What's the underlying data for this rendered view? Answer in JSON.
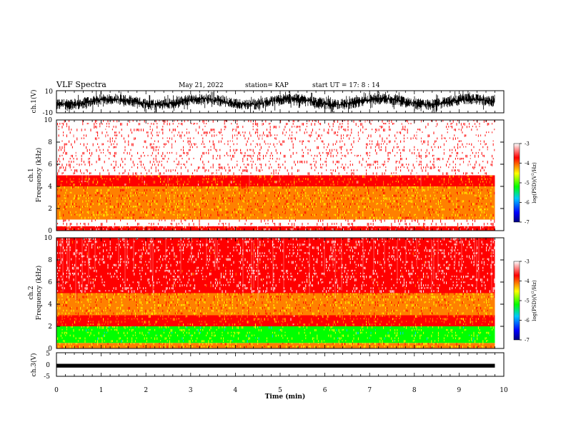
{
  "header": {
    "title": "VLF Spectra",
    "date": "May 21, 2022",
    "station": "station= KAP",
    "start_ut": "start  UT  =    17: 8   : 14"
  },
  "colors": {
    "spectrogram_scale": [
      "#000080",
      "#0000ff",
      "#00c8ff",
      "#00ff00",
      "#ffff00",
      "#ff8000",
      "#ff0000",
      "#ffffff"
    ],
    "trace": "#000000"
  },
  "chart_data": [
    {
      "type": "line",
      "name": "ch1-waveform",
      "ylabel": "ch.1(V)",
      "ylim": [
        -10,
        10
      ],
      "y_ticks": [
        "10",
        "-10"
      ],
      "xlim": [
        0,
        10
      ],
      "description_level": "dense noise trace spanning roughly -10 to 10 V until about 9.8 min"
    },
    {
      "type": "heatmap",
      "name": "ch1-spectrogram",
      "ylabel": "ch.1\nFrequency (kHz)",
      "xlim": [
        0,
        10
      ],
      "ylim": [
        0,
        10
      ],
      "y_ticks": [
        "0",
        "2",
        "4",
        "6",
        "8",
        "10"
      ],
      "data_end_min": 9.8,
      "colorbar": {
        "label": "log(PSD)(V²/Hz)",
        "range": [
          -7,
          -3
        ],
        "ticks": [
          "-3",
          "-4",
          "-5",
          "-6",
          "-7"
        ]
      },
      "bands_khz": [
        {
          "from": 0.0,
          "to": 0.4,
          "level": -3.6
        },
        {
          "from": 0.4,
          "to": 1.0,
          "level": -3.3
        },
        {
          "from": 1.0,
          "to": 4.0,
          "level": -4.2
        },
        {
          "from": 4.0,
          "to": 5.0,
          "level": -3.9
        },
        {
          "from": 5.0,
          "to": 10.0,
          "level": -3.3
        }
      ]
    },
    {
      "type": "heatmap",
      "name": "ch2-spectrogram",
      "ylabel": "ch.2\nFrequency (kHz)",
      "xlim": [
        0,
        10
      ],
      "ylim": [
        0,
        10
      ],
      "y_ticks": [
        "0",
        "2",
        "4",
        "6",
        "8",
        "10"
      ],
      "data_end_min": 9.8,
      "colorbar": {
        "label": "log(PSD)(V²/Hz)",
        "range": [
          -7,
          -3
        ],
        "ticks": [
          "-3",
          "-4",
          "-5",
          "-6",
          "-7"
        ]
      },
      "bands_khz": [
        {
          "from": 0.0,
          "to": 0.5,
          "level": -4.3
        },
        {
          "from": 0.5,
          "to": 2.0,
          "level": -5.0
        },
        {
          "from": 2.0,
          "to": 3.0,
          "level": -3.9
        },
        {
          "from": 3.0,
          "to": 5.0,
          "level": -4.2
        },
        {
          "from": 5.0,
          "to": 10.0,
          "level": -3.4
        }
      ]
    },
    {
      "type": "line",
      "name": "ch3-waveform",
      "ylabel": "ch.3(V)",
      "ylim": [
        -5,
        5
      ],
      "y_ticks": [
        "5",
        "0",
        "-5"
      ],
      "xlim": [
        0,
        10
      ],
      "level_band": [
        -1,
        0
      ]
    }
  ],
  "x_axis": {
    "label": "Time  (min)",
    "ticks": [
      "0",
      "1",
      "2",
      "3",
      "4",
      "5",
      "6",
      "7",
      "8",
      "9",
      "10"
    ]
  }
}
